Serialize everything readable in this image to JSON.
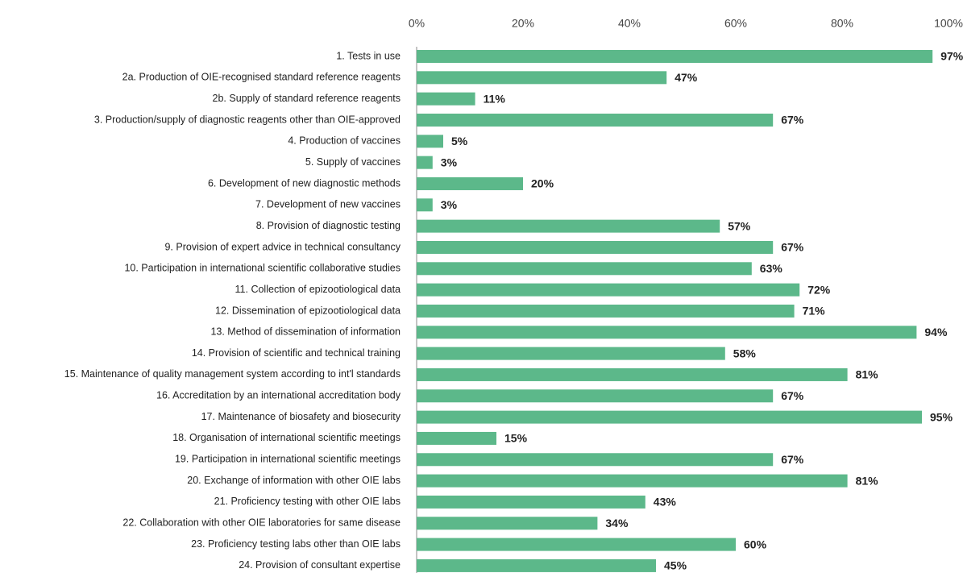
{
  "chart_data": {
    "type": "bar",
    "orientation": "horizontal",
    "categories": [
      "1. Tests in use",
      "2a. Production of OIE-recognised standard reference reagents",
      "2b. Supply of standard reference reagents",
      "3. Production/supply of diagnostic reagents other than OIE-approved",
      "4. Production of vaccines",
      "5. Supply of vaccines",
      "6. Development of new diagnostic methods",
      "7. Development of new vaccines",
      "8. Provision of diagnostic testing",
      "9. Provision of expert advice in technical consultancy",
      "10. Participation in international scientific collaborative studies",
      "11. Collection of epizootiological data",
      "12. Dissemination of epizootiological data",
      "13. Method of dissemination of information",
      "14. Provision of scientific and technical training",
      "15. Maintenance of quality management system according to int'l standards",
      "16. Accreditation by an international accreditation body",
      "17. Maintenance of biosafety and biosecurity",
      "18. Organisation of international scientific meetings",
      "19. Participation in international scientific meetings",
      "20. Exchange of information with other OIE labs",
      "21. Proficiency testing with other OIE labs",
      "22. Collaboration with other OIE laboratories for same disease",
      "23. Proficiency testing labs other than OIE labs",
      "24. Provision of consultant expertise"
    ],
    "values": [
      97,
      47,
      11,
      67,
      5,
      3,
      20,
      3,
      57,
      67,
      63,
      72,
      71,
      94,
      58,
      81,
      67,
      95,
      15,
      67,
      81,
      43,
      34,
      60,
      45
    ],
    "value_labels": [
      "97%",
      "47%",
      "11%",
      "67%",
      "5%",
      "3%",
      "20%",
      "3%",
      "57%",
      "67%",
      "63%",
      "72%",
      "71%",
      "94%",
      "58%",
      "81%",
      "67%",
      "95%",
      "15%",
      "67%",
      "81%",
      "43%",
      "34%",
      "60%",
      "45%"
    ],
    "color": "#5cb88a",
    "xlim": [
      0,
      100
    ],
    "xticks": [
      {
        "value": 0,
        "label": "0%"
      },
      {
        "value": 20,
        "label": "20%"
      },
      {
        "value": 40,
        "label": "40%"
      },
      {
        "value": 60,
        "label": "60%"
      },
      {
        "value": 80,
        "label": "80%"
      },
      {
        "value": 100,
        "label": "100%"
      }
    ]
  }
}
